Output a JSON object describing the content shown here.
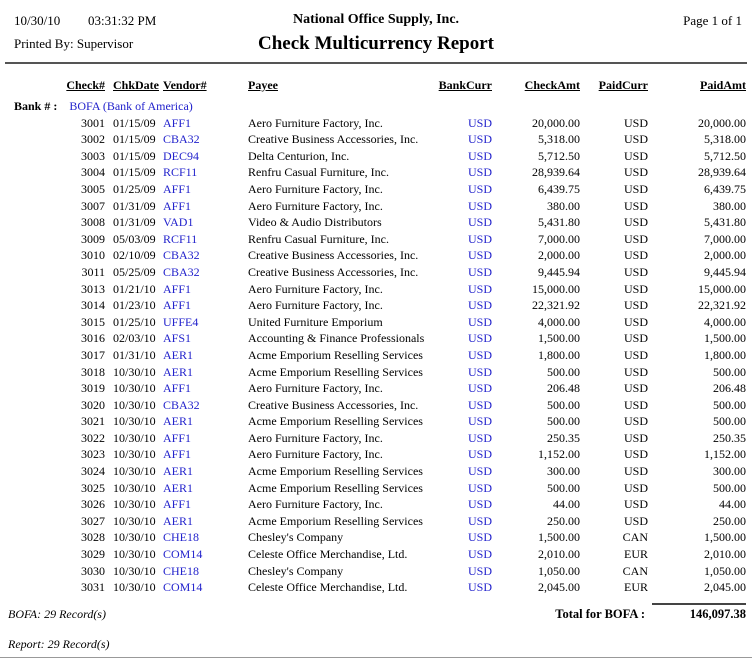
{
  "header": {
    "date": "10/30/10",
    "time": "03:31:32 PM",
    "company": "National Office Supply, Inc.",
    "page_info": "Page 1 of 1",
    "printed_by": "Printed By: Supervisor",
    "title": "Check Multicurrency Report"
  },
  "colors": {
    "link_blue": "#2222CC",
    "text": "#000000",
    "rule_dark": "#555555"
  },
  "table": {
    "headers": [
      "Check#",
      "ChkDate",
      "Vendor#",
      "Payee",
      "BankCurr",
      "CheckAmt",
      "PaidCurr",
      "PaidAmt"
    ],
    "bank_label": "Bank # :",
    "bank_value": "BOFA (Bank of America)",
    "rows": [
      {
        "check": "3001",
        "date": "01/15/09",
        "vendor": "AFF1",
        "payee": "Aero Furniture Factory, Inc.",
        "bank_curr": "USD",
        "check_amt": "20,000.00",
        "paid_curr": "USD",
        "paid_amt": "20,000.00"
      },
      {
        "check": "3002",
        "date": "01/15/09",
        "vendor": "CBA32",
        "payee": "Creative Business Accessories, Inc.",
        "bank_curr": "USD",
        "check_amt": "5,318.00",
        "paid_curr": "USD",
        "paid_amt": "5,318.00"
      },
      {
        "check": "3003",
        "date": "01/15/09",
        "vendor": "DEC94",
        "payee": "Delta Centurion, Inc.",
        "bank_curr": "USD",
        "check_amt": "5,712.50",
        "paid_curr": "USD",
        "paid_amt": "5,712.50"
      },
      {
        "check": "3004",
        "date": "01/15/09",
        "vendor": "RCF11",
        "payee": "Renfru Casual Furniture, Inc.",
        "bank_curr": "USD",
        "check_amt": "28,939.64",
        "paid_curr": "USD",
        "paid_amt": "28,939.64"
      },
      {
        "check": "3005",
        "date": "01/25/09",
        "vendor": "AFF1",
        "payee": "Aero Furniture Factory, Inc.",
        "bank_curr": "USD",
        "check_amt": "6,439.75",
        "paid_curr": "USD",
        "paid_amt": "6,439.75"
      },
      {
        "check": "3007",
        "date": "01/31/09",
        "vendor": "AFF1",
        "payee": "Aero Furniture Factory, Inc.",
        "bank_curr": "USD",
        "check_amt": "380.00",
        "paid_curr": "USD",
        "paid_amt": "380.00"
      },
      {
        "check": "3008",
        "date": "01/31/09",
        "vendor": "VAD1",
        "payee": "Video & Audio Distributors",
        "bank_curr": "USD",
        "check_amt": "5,431.80",
        "paid_curr": "USD",
        "paid_amt": "5,431.80"
      },
      {
        "check": "3009",
        "date": "05/03/09",
        "vendor": "RCF11",
        "payee": "Renfru Casual Furniture, Inc.",
        "bank_curr": "USD",
        "check_amt": "7,000.00",
        "paid_curr": "USD",
        "paid_amt": "7,000.00"
      },
      {
        "check": "3010",
        "date": "02/10/09",
        "vendor": "CBA32",
        "payee": "Creative Business Accessories, Inc.",
        "bank_curr": "USD",
        "check_amt": "2,000.00",
        "paid_curr": "USD",
        "paid_amt": "2,000.00"
      },
      {
        "check": "3011",
        "date": "05/25/09",
        "vendor": "CBA32",
        "payee": "Creative Business Accessories, Inc.",
        "bank_curr": "USD",
        "check_amt": "9,445.94",
        "paid_curr": "USD",
        "paid_amt": "9,445.94"
      },
      {
        "check": "3013",
        "date": "01/21/10",
        "vendor": "AFF1",
        "payee": "Aero Furniture Factory, Inc.",
        "bank_curr": "USD",
        "check_amt": "15,000.00",
        "paid_curr": "USD",
        "paid_amt": "15,000.00"
      },
      {
        "check": "3014",
        "date": "01/23/10",
        "vendor": "AFF1",
        "payee": "Aero Furniture Factory, Inc.",
        "bank_curr": "USD",
        "check_amt": "22,321.92",
        "paid_curr": "USD",
        "paid_amt": "22,321.92"
      },
      {
        "check": "3015",
        "date": "01/25/10",
        "vendor": "UFFE4",
        "payee": "United Furniture Emporium",
        "bank_curr": "USD",
        "check_amt": "4,000.00",
        "paid_curr": "USD",
        "paid_amt": "4,000.00"
      },
      {
        "check": "3016",
        "date": "02/03/10",
        "vendor": "AFS1",
        "payee": "Accounting & Finance Professionals",
        "bank_curr": "USD",
        "check_amt": "1,500.00",
        "paid_curr": "USD",
        "paid_amt": "1,500.00"
      },
      {
        "check": "3017",
        "date": "01/31/10",
        "vendor": "AER1",
        "payee": "Acme Emporium Reselling Services",
        "bank_curr": "USD",
        "check_amt": "1,800.00",
        "paid_curr": "USD",
        "paid_amt": "1,800.00"
      },
      {
        "check": "3018",
        "date": "10/30/10",
        "vendor": "AER1",
        "payee": "Acme Emporium Reselling Services",
        "bank_curr": "USD",
        "check_amt": "500.00",
        "paid_curr": "USD",
        "paid_amt": "500.00"
      },
      {
        "check": "3019",
        "date": "10/30/10",
        "vendor": "AFF1",
        "payee": "Aero Furniture Factory, Inc.",
        "bank_curr": "USD",
        "check_amt": "206.48",
        "paid_curr": "USD",
        "paid_amt": "206.48"
      },
      {
        "check": "3020",
        "date": "10/30/10",
        "vendor": "CBA32",
        "payee": "Creative Business Accessories, Inc.",
        "bank_curr": "USD",
        "check_amt": "500.00",
        "paid_curr": "USD",
        "paid_amt": "500.00"
      },
      {
        "check": "3021",
        "date": "10/30/10",
        "vendor": "AER1",
        "payee": "Acme Emporium Reselling Services",
        "bank_curr": "USD",
        "check_amt": "500.00",
        "paid_curr": "USD",
        "paid_amt": "500.00"
      },
      {
        "check": "3022",
        "date": "10/30/10",
        "vendor": "AFF1",
        "payee": "Aero Furniture Factory, Inc.",
        "bank_curr": "USD",
        "check_amt": "250.35",
        "paid_curr": "USD",
        "paid_amt": "250.35"
      },
      {
        "check": "3023",
        "date": "10/30/10",
        "vendor": "AFF1",
        "payee": "Aero Furniture Factory, Inc.",
        "bank_curr": "USD",
        "check_amt": "1,152.00",
        "paid_curr": "USD",
        "paid_amt": "1,152.00"
      },
      {
        "check": "3024",
        "date": "10/30/10",
        "vendor": "AER1",
        "payee": "Acme Emporium Reselling Services",
        "bank_curr": "USD",
        "check_amt": "300.00",
        "paid_curr": "USD",
        "paid_amt": "300.00"
      },
      {
        "check": "3025",
        "date": "10/30/10",
        "vendor": "AER1",
        "payee": "Acme Emporium Reselling Services",
        "bank_curr": "USD",
        "check_amt": "500.00",
        "paid_curr": "USD",
        "paid_amt": "500.00"
      },
      {
        "check": "3026",
        "date": "10/30/10",
        "vendor": "AFF1",
        "payee": "Aero Furniture Factory, Inc.",
        "bank_curr": "USD",
        "check_amt": "44.00",
        "paid_curr": "USD",
        "paid_amt": "44.00"
      },
      {
        "check": "3027",
        "date": "10/30/10",
        "vendor": "AER1",
        "payee": "Acme Emporium Reselling Services",
        "bank_curr": "USD",
        "check_amt": "250.00",
        "paid_curr": "USD",
        "paid_amt": "250.00"
      },
      {
        "check": "3028",
        "date": "10/30/10",
        "vendor": "CHE18",
        "payee": "Chesley's Company",
        "bank_curr": "USD",
        "check_amt": "1,500.00",
        "paid_curr": "CAN",
        "paid_amt": "1,500.00"
      },
      {
        "check": "3029",
        "date": "10/30/10",
        "vendor": "COM14",
        "payee": "Celeste Office Merchandise, Ltd.",
        "bank_curr": "USD",
        "check_amt": "2,010.00",
        "paid_curr": "EUR",
        "paid_amt": "2,010.00"
      },
      {
        "check": "3030",
        "date": "10/30/10",
        "vendor": "CHE18",
        "payee": "Chesley's Company",
        "bank_curr": "USD",
        "check_amt": "1,050.00",
        "paid_curr": "CAN",
        "paid_amt": "1,050.00"
      },
      {
        "check": "3031",
        "date": "10/30/10",
        "vendor": "COM14",
        "payee": "Celeste Office Merchandise, Ltd.",
        "bank_curr": "USD",
        "check_amt": "2,045.00",
        "paid_curr": "EUR",
        "paid_amt": "2,045.00"
      }
    ]
  },
  "footer": {
    "bank_records": "BOFA: 29 Record(s)",
    "total_label": "Total for BOFA :",
    "total_value": "146,097.38",
    "report_records": "Report: 29 Record(s)"
  }
}
